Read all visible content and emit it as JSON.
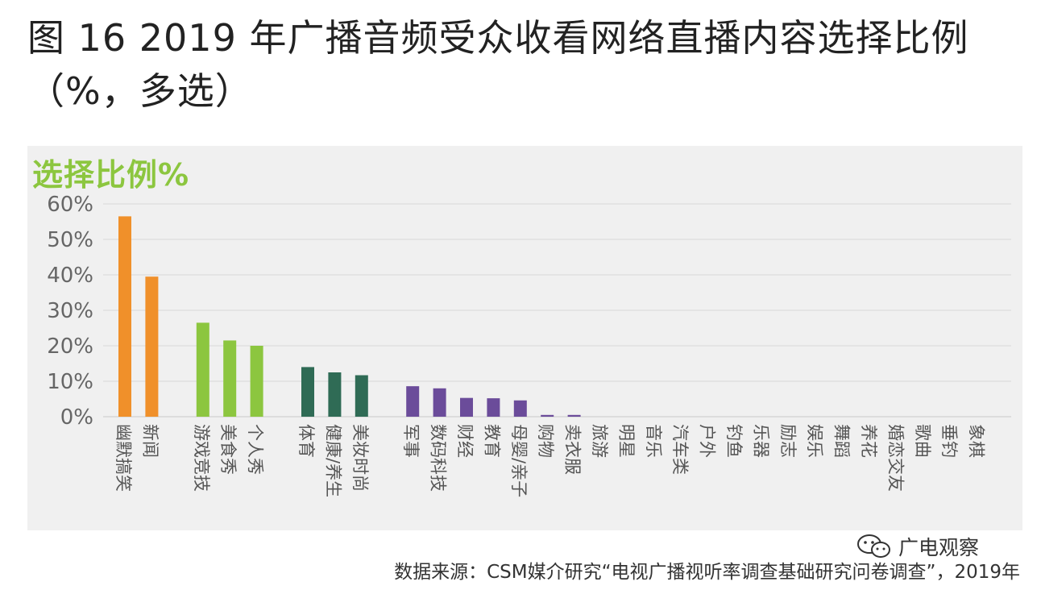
{
  "title": "图 16 2019 年广播音频受众收看网络直播内容选择比例（%，多选）",
  "chart_heading": "选择比例%",
  "source": "数据来源：CSM媒介研究“电视广播视听率调查基础研究问卷调查”，2019年",
  "watermark": "广电观察",
  "watermark_icon": "wechat-icon",
  "chart_data": {
    "type": "bar",
    "title": "选择比例%",
    "ylim": [
      0,
      60
    ],
    "yticks": [
      "0%",
      "10%",
      "20%",
      "30%",
      "40%",
      "50%",
      "60%"
    ],
    "grid": true,
    "colors": [
      "#f0902a",
      "#8cc63f",
      "#2f6b55",
      "#6b4c9a"
    ],
    "series": [
      {
        "values": [
          {
            "label": "幽默搞笑",
            "value": 56.5,
            "group": 0
          },
          {
            "label": "新闻",
            "value": 39.5,
            "group": 0
          },
          {
            "label": "游戏竞技",
            "value": 26.5,
            "group": 1
          },
          {
            "label": "美食秀",
            "value": 21.5,
            "group": 1
          },
          {
            "label": "个人秀",
            "value": 20.0,
            "group": 1
          },
          {
            "label": "体育",
            "value": 14.0,
            "group": 2
          },
          {
            "label": "健康/养生",
            "value": 12.5,
            "group": 2
          },
          {
            "label": "美妆时尚",
            "value": 11.7,
            "group": 2
          },
          {
            "label": "军事",
            "value": 8.6,
            "group": 3
          },
          {
            "label": "数码科技",
            "value": 8.0,
            "group": 3
          },
          {
            "label": "财经",
            "value": 5.3,
            "group": 3
          },
          {
            "label": "教育",
            "value": 5.2,
            "group": 3
          },
          {
            "label": "母婴/亲子",
            "value": 4.6,
            "group": 3
          },
          {
            "label": "购物",
            "value": 0.5,
            "group": 3
          },
          {
            "label": "卖衣服",
            "value": 0.5,
            "group": 3
          },
          {
            "label": "旅游",
            "value": 0,
            "group": 3
          },
          {
            "label": "明星",
            "value": 0,
            "group": 3
          },
          {
            "label": "音乐",
            "value": 0,
            "group": 3
          },
          {
            "label": "汽车类",
            "value": 0,
            "group": 3
          },
          {
            "label": "户外",
            "value": 0,
            "group": 3
          },
          {
            "label": "钓鱼",
            "value": 0,
            "group": 3
          },
          {
            "label": "乐器",
            "value": 0,
            "group": 3
          },
          {
            "label": "励志",
            "value": 0,
            "group": 3
          },
          {
            "label": "娱乐",
            "value": 0,
            "group": 3
          },
          {
            "label": "舞蹈",
            "value": 0,
            "group": 3
          },
          {
            "label": "养花",
            "value": 0,
            "group": 3
          },
          {
            "label": "婚恋交友",
            "value": 0,
            "group": 3
          },
          {
            "label": "歌曲",
            "value": 0,
            "group": 3
          },
          {
            "label": "垂钓",
            "value": 0,
            "group": 3
          },
          {
            "label": "象棋",
            "value": 0,
            "group": 3
          }
        ]
      }
    ]
  }
}
